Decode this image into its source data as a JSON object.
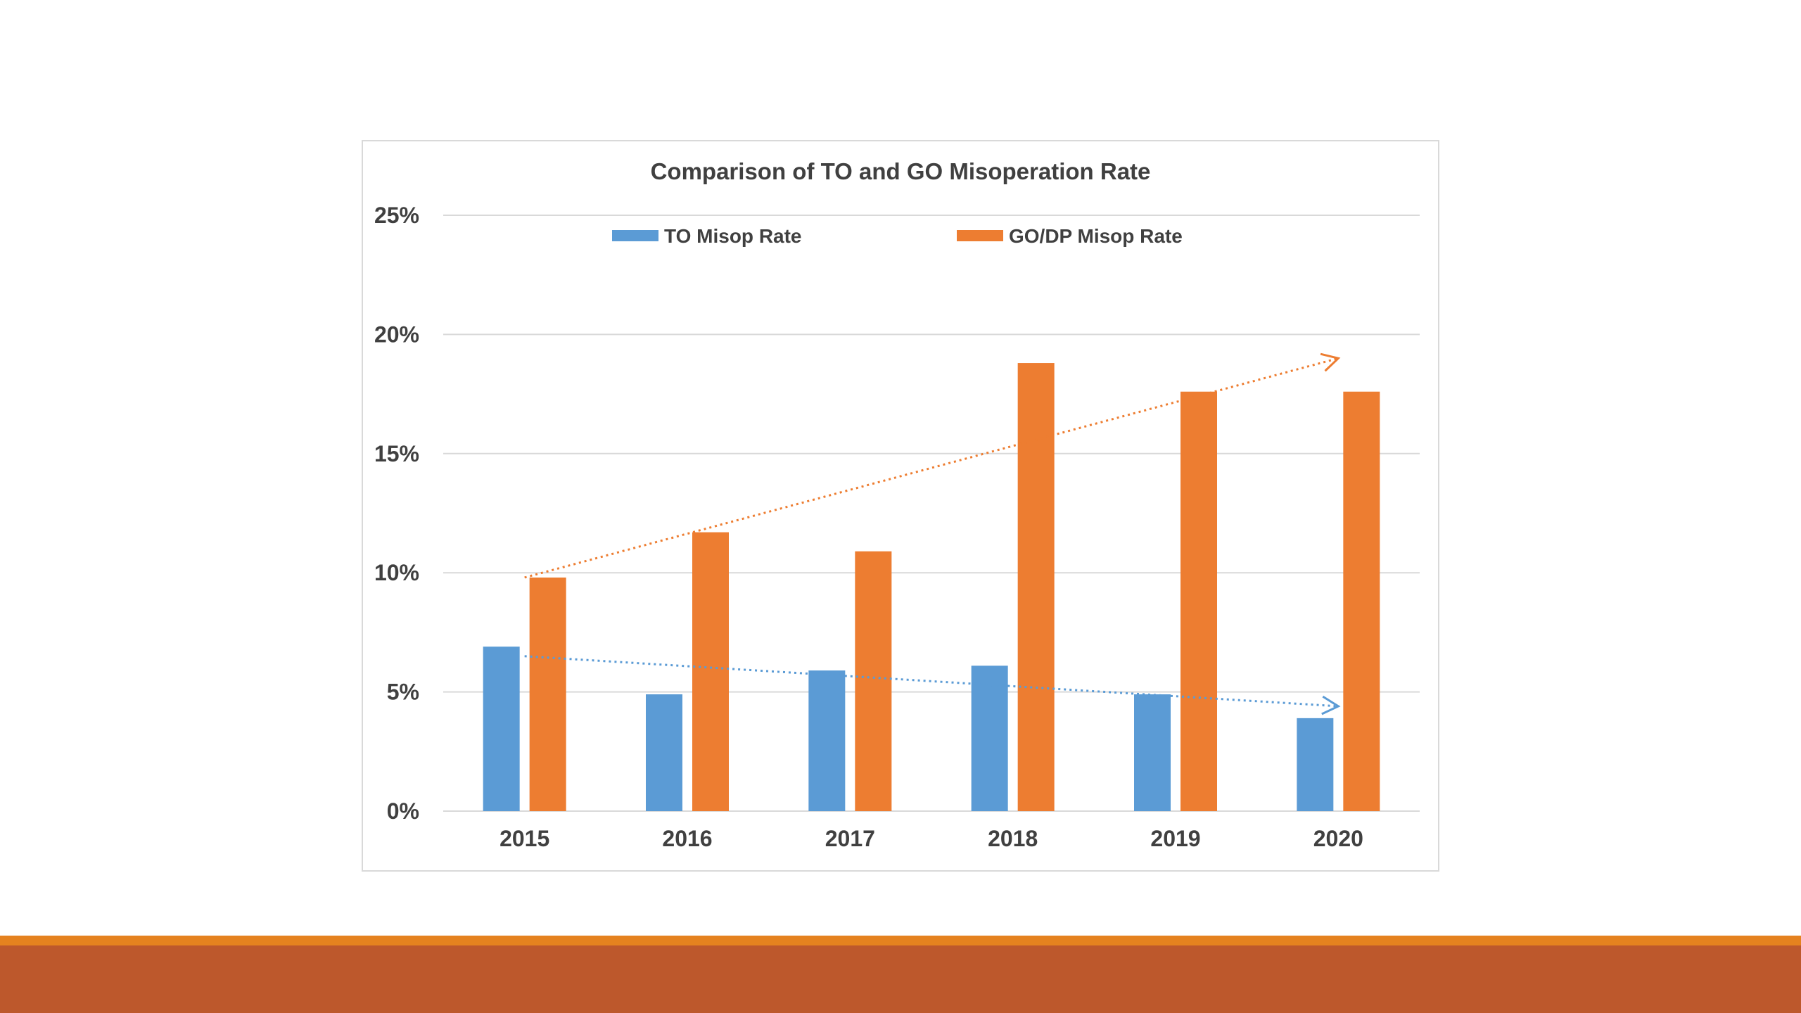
{
  "chart_data": {
    "type": "bar",
    "title": "Comparison of TO and GO Misoperation Rate",
    "xlabel": "",
    "ylabel": "",
    "categories": [
      "2015",
      "2016",
      "2017",
      "2018",
      "2019",
      "2020"
    ],
    "ylim": [
      0,
      0.25
    ],
    "yticks": [
      0,
      0.05,
      0.1,
      0.15,
      0.2,
      0.25
    ],
    "ytick_labels": [
      "0%",
      "5%",
      "10%",
      "15%",
      "20%",
      "25%"
    ],
    "grid": "horizontal",
    "legend_position": "top",
    "series": [
      {
        "name": "TO Misop Rate",
        "color": "#5b9bd5",
        "values": [
          0.069,
          0.049,
          0.059,
          0.061,
          0.049,
          0.039
        ],
        "trend": {
          "style": "dotted-arrow",
          "start": 0.065,
          "end": 0.044
        }
      },
      {
        "name": "GO/DP Misop Rate",
        "color": "#ed7d31",
        "values": [
          0.098,
          0.117,
          0.109,
          0.188,
          0.176,
          0.176
        ],
        "trend": {
          "style": "dotted-arrow",
          "start": 0.098,
          "end": 0.19
        }
      }
    ]
  },
  "theme": {
    "grid_color": "#d9d9d9",
    "text_color": "#404040",
    "stripe_top_color": "#e5821f",
    "stripe_bottom_color": "#bd582c"
  }
}
